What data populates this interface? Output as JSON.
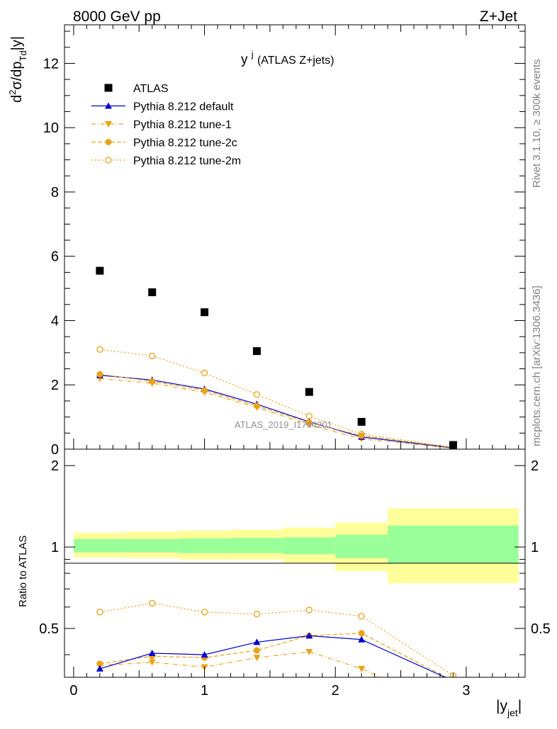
{
  "header": {
    "energy": "8000 GeV pp",
    "process": "Z+Jet",
    "plot_title": "y",
    "plot_title_sup": "j",
    "plot_title_suffix": " (ATLAS Z+jets)",
    "side_rivet": "Rivet 3.1.10, ≥ 300k events",
    "side_mcplots": "mcplots.cern.ch [arXiv:1306.3436]",
    "watermark": "ATLAS_2019_I1744201"
  },
  "axes": {
    "ylabel_main": "d²σ/dp_Td|y|",
    "ylabel_ratio": "Ratio to ATLAS",
    "xlabel": "|y_jet|"
  },
  "colors": {
    "atlas": "#000000",
    "default": "#0000cc",
    "tunes": "#e8a317",
    "band_inner": "#99ff99",
    "band_outer": "#ffff99"
  },
  "chart_data": [
    {
      "type": "scatter",
      "panel": "main",
      "x": [
        0.2,
        0.6,
        1.0,
        1.4,
        1.8,
        2.2,
        2.9
      ],
      "xlim": [
        -0.07,
        3.45
      ],
      "ylim": [
        0,
        13.2
      ],
      "yticks": [
        0,
        2,
        4,
        6,
        8,
        10,
        12
      ],
      "series": [
        {
          "name": "ATLAS",
          "style": "square",
          "values": [
            5.55,
            4.88,
            4.26,
            3.05,
            1.78,
            0.85,
            0.13
          ]
        },
        {
          "name": "Pythia 8.212 default",
          "style": "triangle-up",
          "values": [
            2.3,
            2.15,
            1.87,
            1.4,
            0.85,
            0.38,
            0.04
          ]
        },
        {
          "name": "Pythia 8.212 tune-1",
          "style": "triangle-down",
          "values": [
            2.2,
            2.05,
            1.77,
            1.3,
            0.76,
            0.32,
            0.03
          ]
        },
        {
          "name": "Pythia 8.212 tune-2c",
          "style": "circle",
          "values": [
            2.33,
            2.11,
            1.83,
            1.35,
            0.83,
            0.42,
            0.05
          ]
        },
        {
          "name": "Pythia 8.212 tune-2m",
          "style": "open-circle",
          "values": [
            3.1,
            2.9,
            2.37,
            1.7,
            1.03,
            0.47,
            0.06
          ]
        }
      ]
    },
    {
      "type": "line",
      "panel": "ratio",
      "ylabel": "Ratio to ATLAS",
      "xlabel": "|y_jet|",
      "xlim": [
        -0.07,
        3.45
      ],
      "ylim": [
        0.33,
        2.3
      ],
      "yticks": [
        0.5,
        1,
        2
      ],
      "xticks": [
        0,
        1,
        2,
        3
      ],
      "x": [
        0.2,
        0.6,
        1.0,
        1.4,
        1.8,
        2.2,
        2.9
      ],
      "bands": {
        "edges": [
          0.0,
          0.4,
          0.8,
          1.2,
          1.6,
          2.0,
          2.4,
          3.4
        ],
        "inner_lo": [
          0.955,
          0.955,
          0.95,
          0.95,
          0.94,
          0.91,
          0.87
        ],
        "inner_hi": [
          1.07,
          1.07,
          1.075,
          1.08,
          1.085,
          1.11,
          1.2
        ],
        "outer_lo": [
          0.915,
          0.91,
          0.9,
          0.9,
          0.875,
          0.815,
          0.735
        ],
        "outer_hi": [
          1.13,
          1.14,
          1.15,
          1.16,
          1.18,
          1.23,
          1.39
        ]
      },
      "series": [
        {
          "name": "Pythia 8.212 default",
          "style": "triangle-up",
          "values": [
            0.355,
            0.405,
            0.4,
            0.445,
            0.47,
            0.455,
            0.32
          ]
        },
        {
          "name": "Pythia 8.212 tune-1",
          "style": "triangle-down",
          "values": [
            0.365,
            0.375,
            0.36,
            0.39,
            0.41,
            0.355,
            0.25
          ]
        },
        {
          "name": "Pythia 8.212 tune-2c",
          "style": "circle",
          "values": [
            0.37,
            0.395,
            0.39,
            0.415,
            0.47,
            0.48,
            0.32
          ]
        },
        {
          "name": "Pythia 8.212 tune-2m",
          "style": "open-circle",
          "values": [
            0.575,
            0.62,
            0.575,
            0.565,
            0.585,
            0.555,
            0.335
          ]
        }
      ]
    }
  ]
}
